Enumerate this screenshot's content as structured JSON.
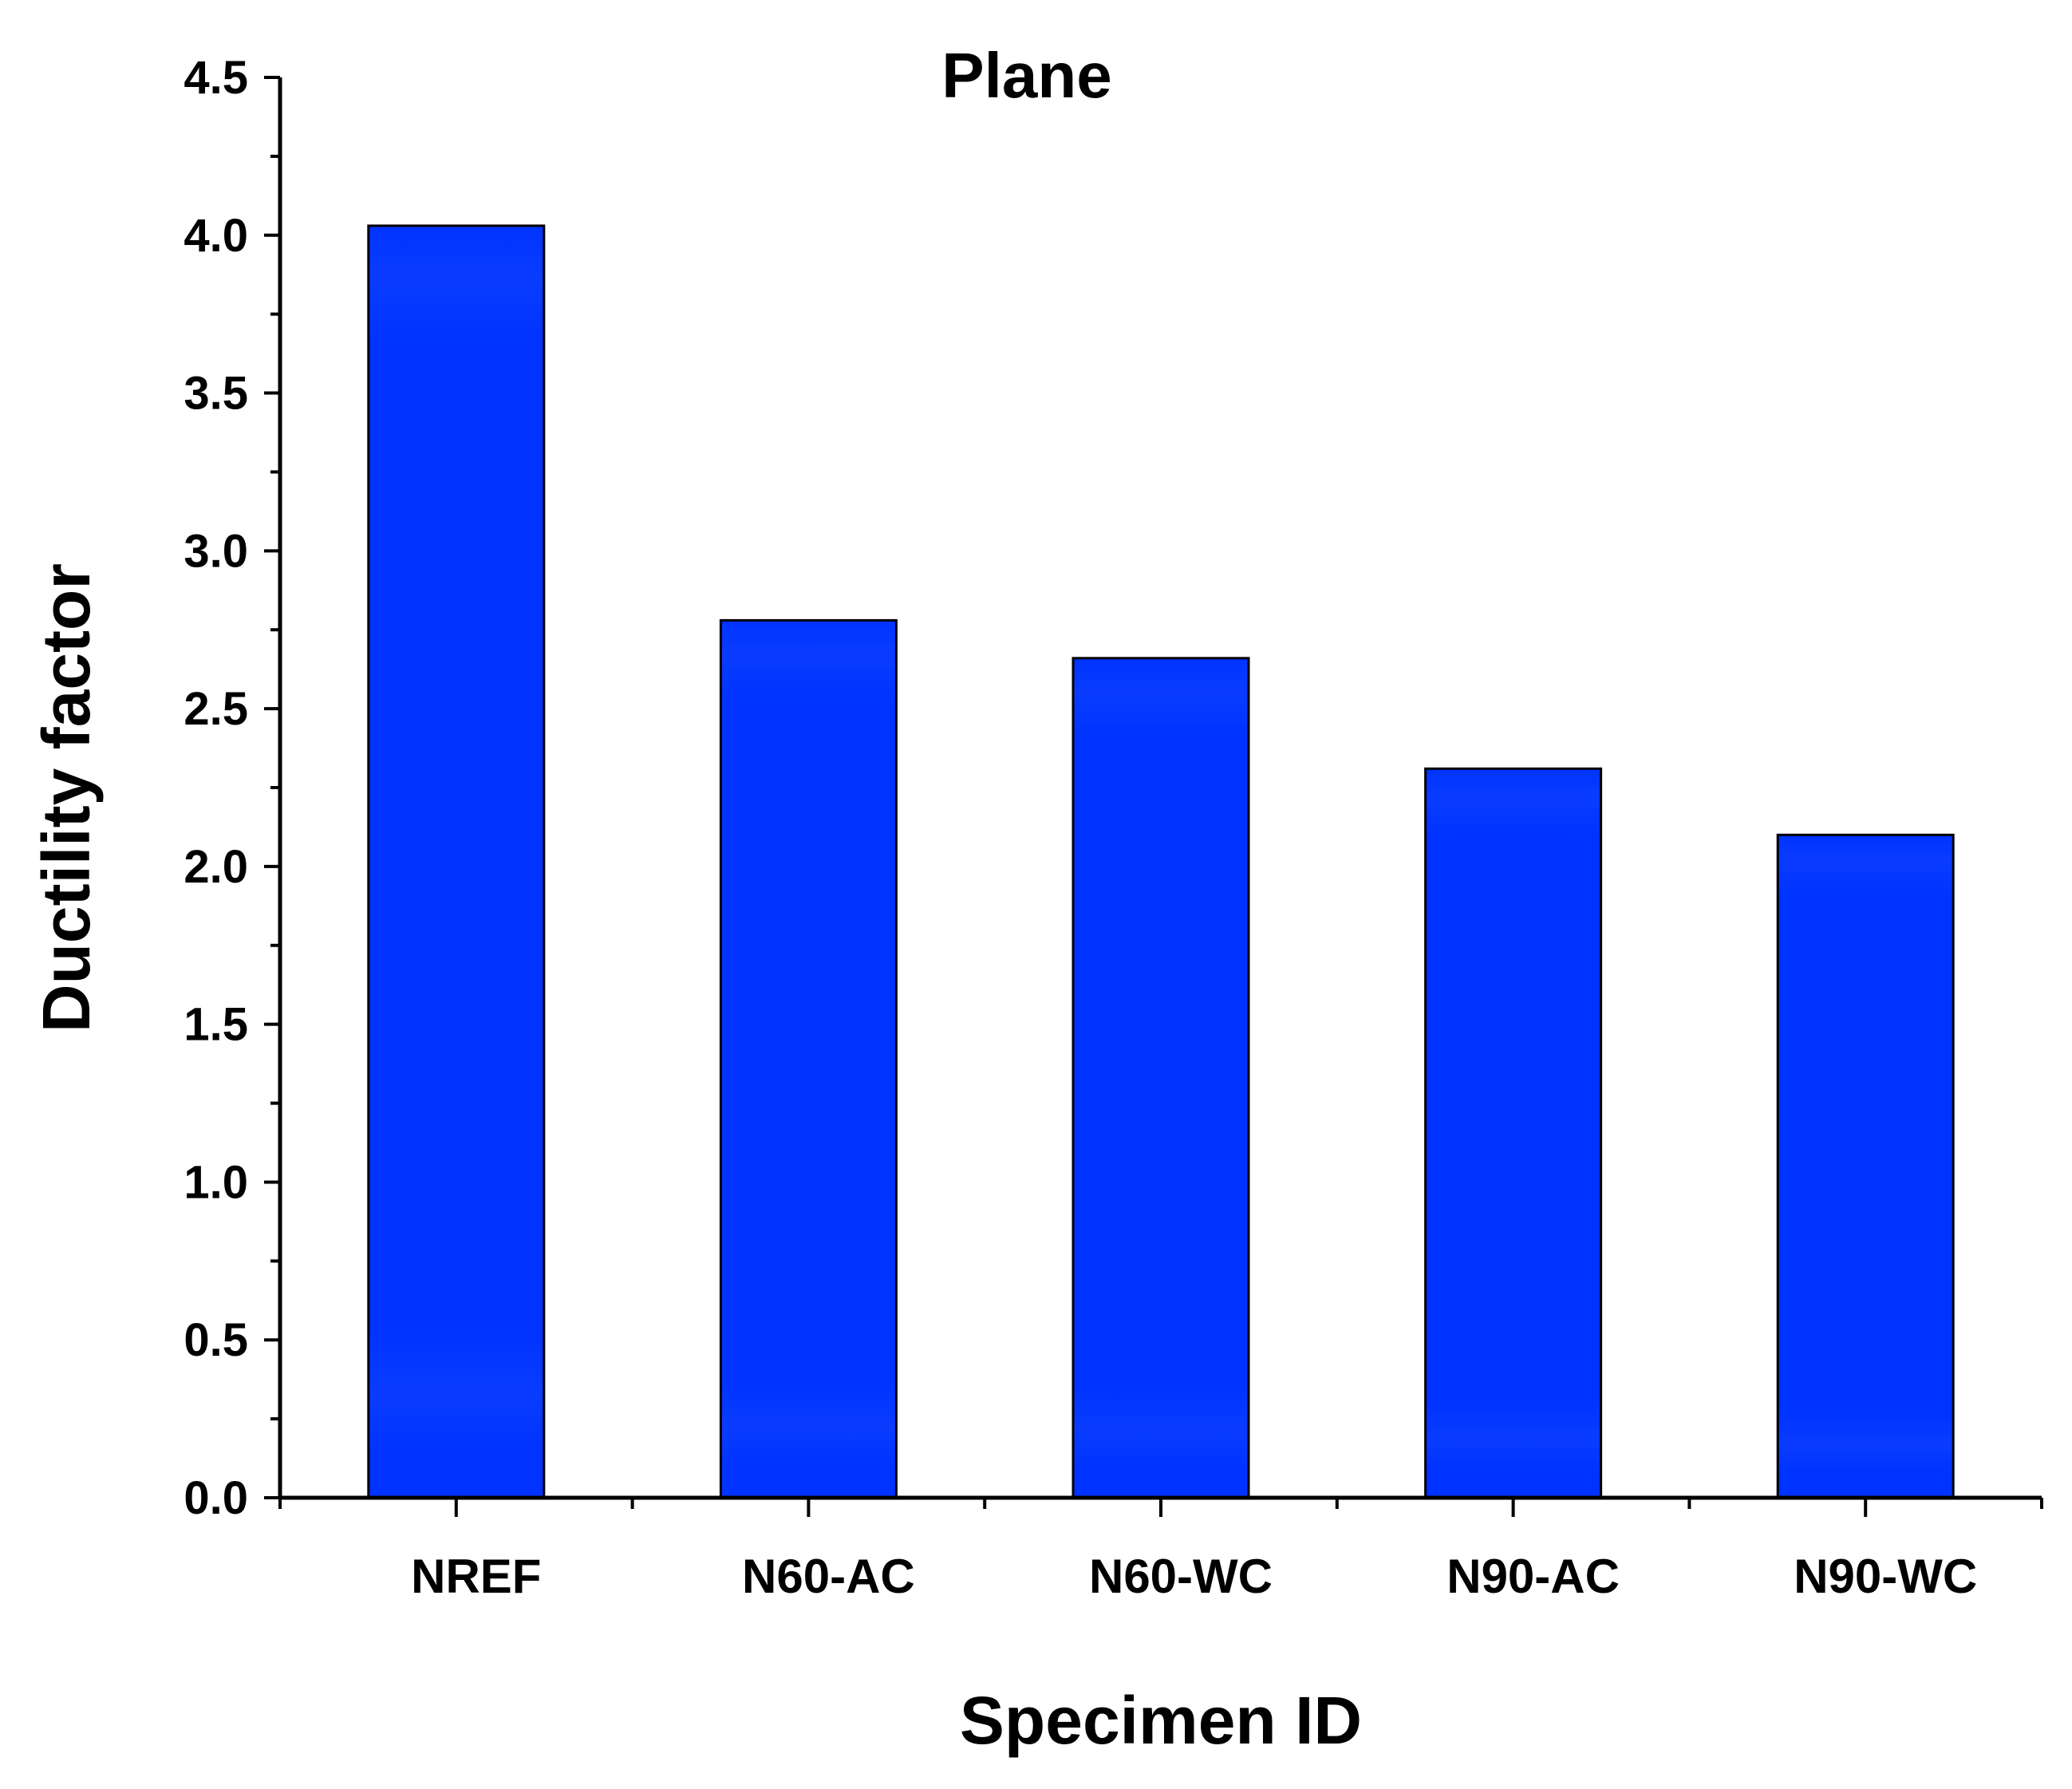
{
  "chart_data": {
    "type": "bar",
    "title": "Plane",
    "xlabel": "Specimen ID",
    "ylabel": "Ductility factor",
    "categories": [
      "NREF",
      "N60-AC",
      "N60-WC",
      "N90-AC",
      "N90-WC"
    ],
    "values": [
      4.03,
      2.78,
      2.66,
      2.31,
      2.1
    ],
    "ylim": [
      0,
      4.5
    ],
    "yticks": [
      "0.0",
      "0.5",
      "1.0",
      "1.5",
      "2.0",
      "2.5",
      "3.0",
      "3.5",
      "4.0",
      "4.5"
    ],
    "grid": false,
    "legend": "none",
    "colors": {
      "bar_fill": "#0033ff",
      "bar_band": "#0a3cff",
      "bar_stroke": "#000000",
      "axis": "#000000"
    }
  }
}
